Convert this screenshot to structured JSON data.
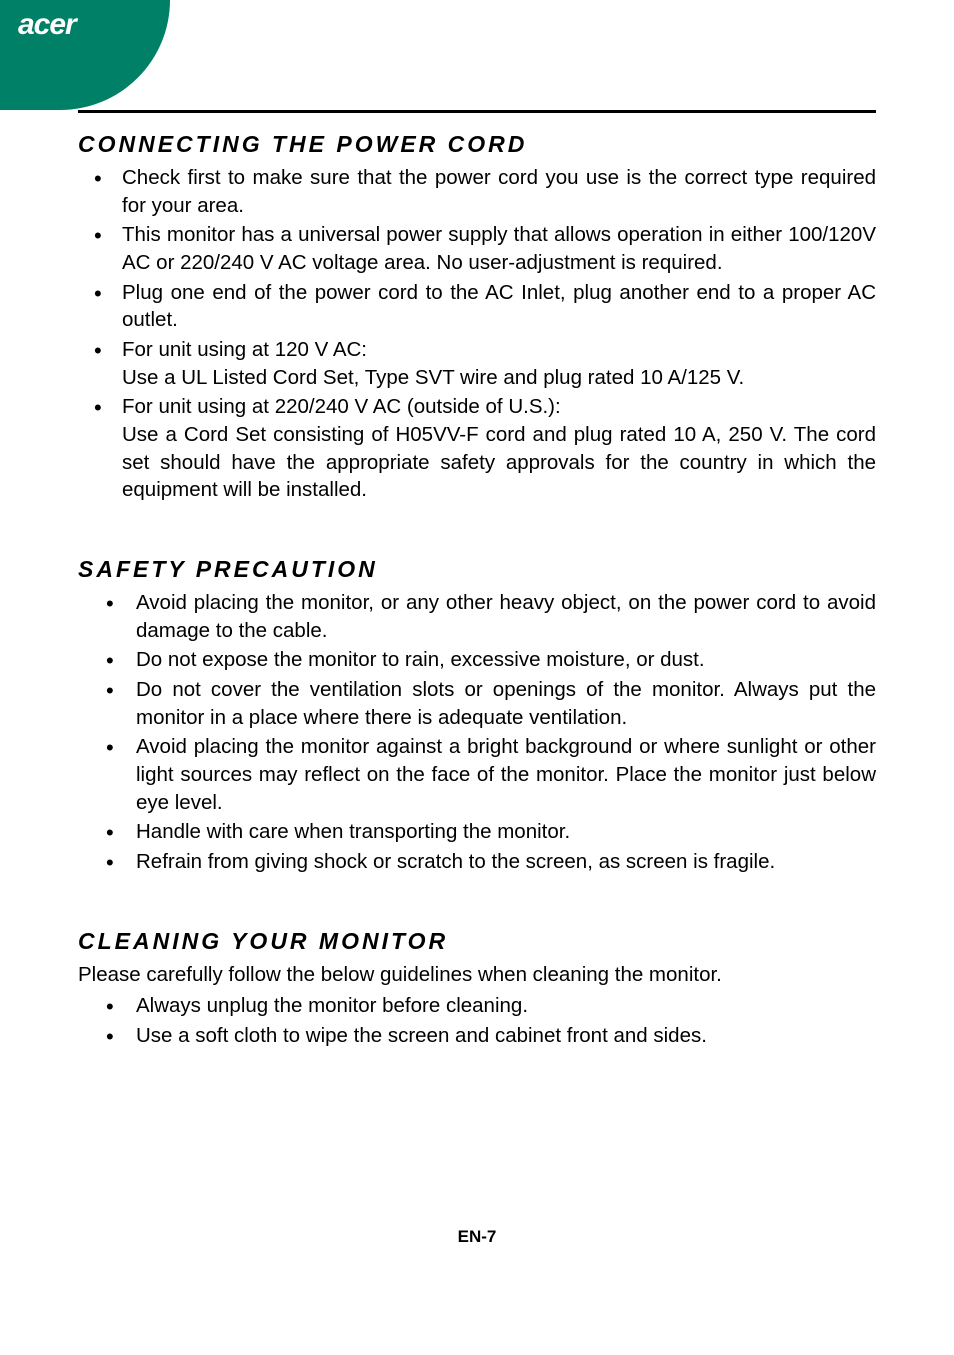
{
  "brand": "acer",
  "page_number": "EN-7",
  "colors": {
    "corner": "#008066",
    "text": "#000000",
    "bg": "#ffffff",
    "logo_text": "#ffffff"
  },
  "sections": [
    {
      "heading": "CONNECTING THE POWER CORD",
      "intro": null,
      "indent": "normal",
      "items": [
        "Check first to make sure that the power cord you use is the correct type required for your area.",
        "This monitor has a universal power supply that allows operation in either 100/120V AC or 220/240 V AC voltage area. No user-adjustment is required.",
        "Plug one end of the power cord to the AC Inlet, plug another end to a proper AC outlet.",
        "For unit using at 120 V AC:\nUse a UL Listed Cord Set, Type SVT wire and plug rated 10 A/125 V.",
        "For unit using at 220/240 V AC (outside of U.S.):\nUse a Cord Set consisting of H05VV-F cord and plug rated 10 A, 250 V. The cord set should have the appropriate safety approvals for the country in which the equipment will be installed."
      ]
    },
    {
      "heading": "SAFETY PRECAUTION",
      "intro": null,
      "indent": "extra",
      "items": [
        "Avoid placing the monitor, or any other heavy object, on the power cord to avoid damage to the cable.",
        "Do not expose the monitor to rain, excessive moisture, or dust.",
        "Do not cover the ventilation slots or openings of the monitor. Always put the monitor in a place where there is adequate ventilation.",
        "Avoid placing the monitor against a bright background or where sunlight or other light sources may reflect on the face of the monitor. Place the monitor just below eye level.",
        "Handle with care when transporting the monitor.",
        "Refrain from giving shock or scratch to the screen, as screen is fragile."
      ]
    },
    {
      "heading": "CLEANING YOUR MONITOR",
      "intro": "Please carefully follow the below guidelines when cleaning the monitor.",
      "indent": "extra",
      "items": [
        "Always unplug the monitor before cleaning.",
        "Use a soft cloth to wipe the screen and cabinet front and sides."
      ]
    }
  ]
}
